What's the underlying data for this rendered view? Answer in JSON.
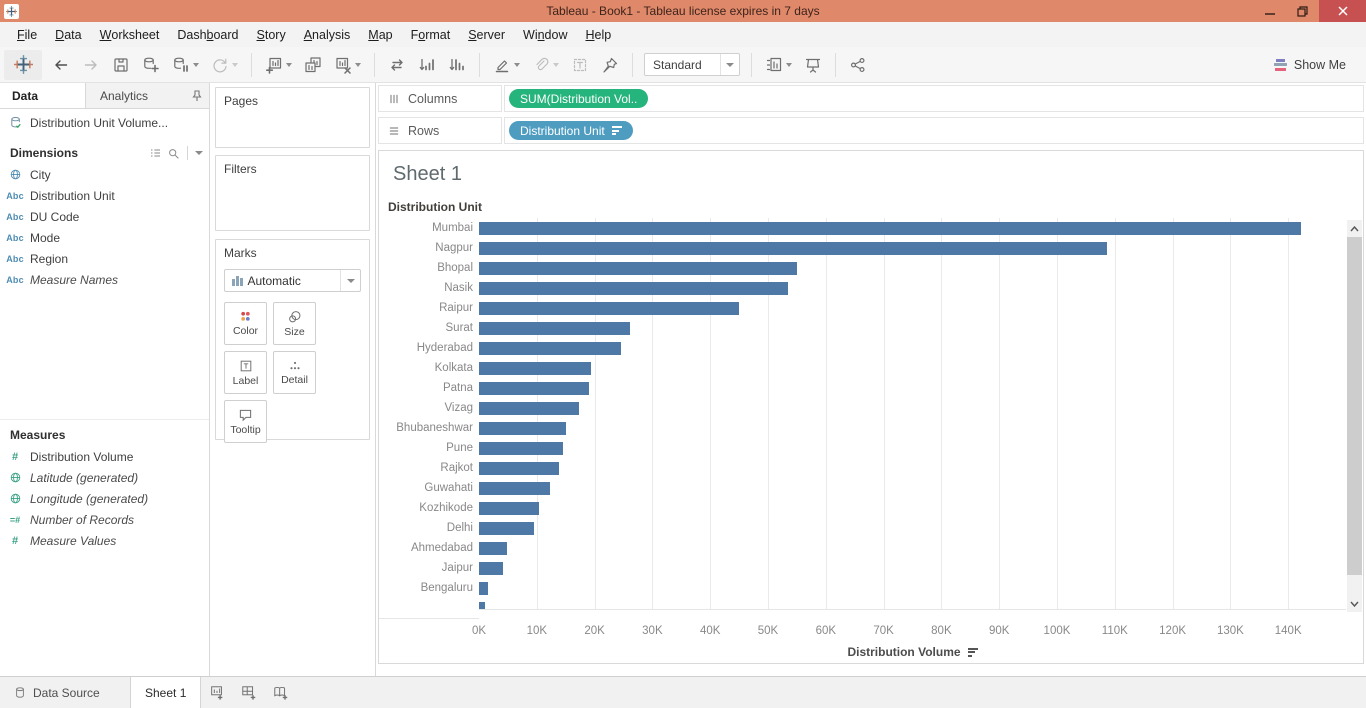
{
  "window": {
    "title": "Tableau - Book1 - Tableau license expires in 7 days"
  },
  "menu": {
    "items": [
      {
        "label": "File",
        "mnemonic": 0
      },
      {
        "label": "Data",
        "mnemonic": 0
      },
      {
        "label": "Worksheet",
        "mnemonic": 0
      },
      {
        "label": "Dashboard",
        "mnemonic": 4
      },
      {
        "label": "Story",
        "mnemonic": 0
      },
      {
        "label": "Analysis",
        "mnemonic": 0
      },
      {
        "label": "Map",
        "mnemonic": 0
      },
      {
        "label": "Format",
        "mnemonic": 1
      },
      {
        "label": "Server",
        "mnemonic": 0
      },
      {
        "label": "Window",
        "mnemonic": 2
      },
      {
        "label": "Help",
        "mnemonic": 0
      }
    ]
  },
  "toolbar": {
    "view_mode": "Standard",
    "show_me_label": "Show Me",
    "groups": [
      [
        {
          "icon": "undo-icon"
        },
        {
          "icon": "redo-icon",
          "disabled": true
        },
        {
          "icon": "save-icon"
        },
        {
          "icon": "add-data-icon"
        },
        {
          "icon": "pause-updates-icon",
          "caret": true
        },
        {
          "icon": "refresh-icon",
          "disabled": true,
          "caret": true
        }
      ],
      [
        {
          "icon": "new-worksheet-icon",
          "caret": true
        },
        {
          "icon": "duplicate-icon"
        },
        {
          "icon": "clear-sheet-icon",
          "caret": true
        }
      ],
      [
        {
          "icon": "swap-axes-icon"
        },
        {
          "icon": "sort-ascending-icon"
        },
        {
          "icon": "sort-descending-icon"
        }
      ],
      [
        {
          "icon": "highlight-icon",
          "caret": true
        },
        {
          "icon": "paperclip-icon",
          "disabled": true,
          "caret": true
        },
        {
          "icon": "text-label-icon",
          "disabled": true
        },
        {
          "icon": "fix-axes-icon"
        }
      ],
      [
        {
          "select": true
        }
      ],
      [
        {
          "icon": "show-labels-icon",
          "caret": true
        },
        {
          "icon": "presentation-icon"
        }
      ],
      [
        {
          "icon": "share-icon"
        }
      ]
    ]
  },
  "data_pane": {
    "tabs": [
      {
        "label": "Data",
        "active": true
      },
      {
        "label": "Analytics",
        "active": false
      }
    ],
    "data_source": "Distribution Unit Volume...",
    "dimensions": {
      "header": "Dimensions",
      "items": [
        {
          "icon": "globe",
          "label": "City"
        },
        {
          "icon": "abc",
          "label": "Distribution Unit"
        },
        {
          "icon": "abc",
          "label": "DU Code"
        },
        {
          "icon": "abc",
          "label": "Mode"
        },
        {
          "icon": "abc",
          "label": "Region"
        },
        {
          "icon": "abc",
          "label": "Measure Names",
          "italic": true
        }
      ]
    },
    "measures": {
      "header": "Measures",
      "items": [
        {
          "icon": "hash",
          "label": "Distribution Volume"
        },
        {
          "icon": "globe",
          "label": "Latitude (generated)",
          "italic": true
        },
        {
          "icon": "globe",
          "label": "Longitude (generated)",
          "italic": true
        },
        {
          "icon": "hasheq",
          "label": "Number of Records",
          "italic": true
        },
        {
          "icon": "hash",
          "label": "Measure Values",
          "italic": true
        }
      ]
    }
  },
  "cards": {
    "pages_label": "Pages",
    "filters_label": "Filters",
    "marks": {
      "label": "Marks",
      "mark_type": "Automatic",
      "buttons": [
        "Color",
        "Size",
        "Label",
        "Detail",
        "Tooltip"
      ]
    }
  },
  "shelves": {
    "columns_label": "Columns",
    "rows_label": "Rows",
    "columns_pill": "SUM(Distribution Vol..",
    "rows_pill": "Distribution Unit"
  },
  "sheet": {
    "title": "Sheet 1"
  },
  "chart_data": {
    "type": "bar",
    "orientation": "horizontal",
    "title": "Sheet 1",
    "row_header": "Distribution Unit",
    "categories": [
      "Mumbai",
      "Nagpur",
      "Bhopal",
      "Nasik",
      "Raipur",
      "Surat",
      "Hyderabad",
      "Kolkata",
      "Patna",
      "Vizag",
      "Bhubaneshwar",
      "Pune",
      "Rajkot",
      "Guwahati",
      "Kozhikode",
      "Delhi",
      "Ahmedabad",
      "Jaipur",
      "Bengaluru"
    ],
    "values": [
      142200,
      108700,
      55000,
      53500,
      44900,
      26200,
      24600,
      19300,
      19000,
      17300,
      15100,
      14500,
      13900,
      12200,
      10400,
      9600,
      4900,
      4100,
      1600
    ],
    "partial_row_value": 1000,
    "xlabel": "Distribution Volume",
    "x_tick_labels": [
      "0K",
      "10K",
      "20K",
      "30K",
      "40K",
      "50K",
      "60K",
      "70K",
      "80K",
      "90K",
      "100K",
      "110K",
      "120K",
      "130K",
      "140K"
    ],
    "x_tick_values": [
      0,
      10000,
      20000,
      30000,
      40000,
      50000,
      60000,
      70000,
      80000,
      90000,
      100000,
      110000,
      120000,
      130000,
      140000
    ],
    "xlim": [
      0,
      150000
    ],
    "sort": "descending",
    "grid": "vertical",
    "legend": "none"
  },
  "bottom_bar": {
    "data_source_tab": "Data Source",
    "sheet_tab": "Sheet 1"
  },
  "colors": {
    "titlebar": "#e0886a",
    "close_button": "#c75050",
    "bar": "#4e79a7",
    "measure_pill": "#25b47c",
    "dimension_pill": "#4e9dc0",
    "dimension_icon": "#4e8cb5",
    "measure_icon": "#38a184"
  }
}
